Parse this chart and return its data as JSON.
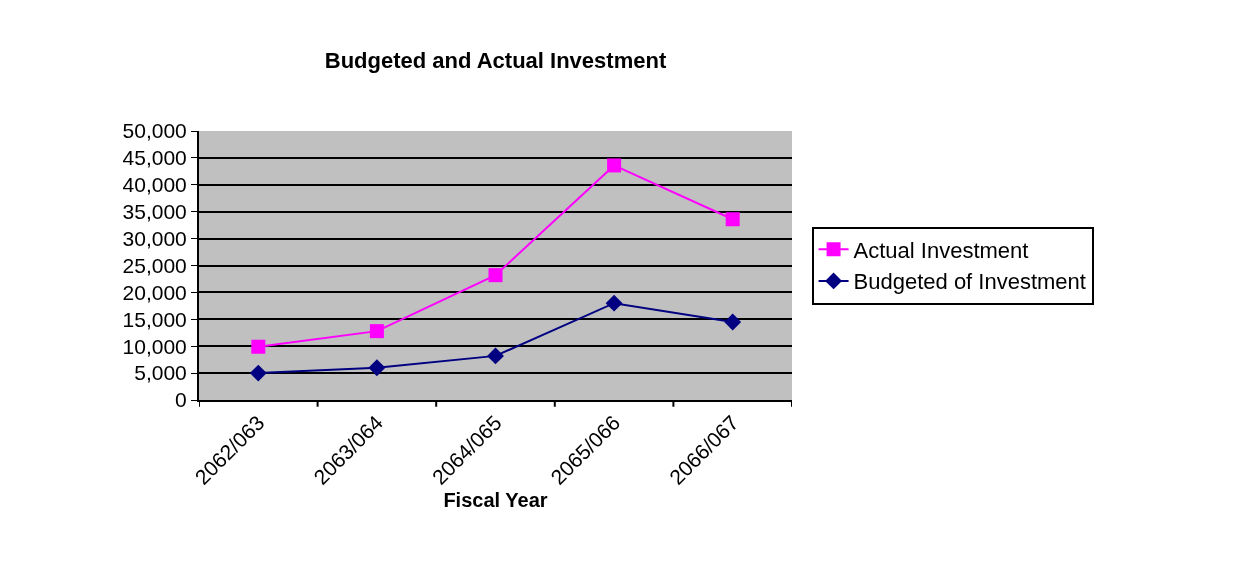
{
  "chart_data": {
    "type": "line",
    "title": "Budgeted and Actual Investment",
    "xlabel": "Fiscal Year",
    "categories": [
      "2062/063",
      "2063/064",
      "2064/065",
      "2065/066",
      "2066/067"
    ],
    "series": [
      {
        "name": "Actual Investment",
        "color": "#ff00ff",
        "marker": "square",
        "values": [
          9900,
          12800,
          23200,
          43600,
          33600
        ]
      },
      {
        "name": "Budgeted of Investment",
        "color": "#000080",
        "marker": "diamond",
        "values": [
          5000,
          6000,
          8200,
          18000,
          14500
        ]
      }
    ],
    "ylim": [
      0,
      50000
    ],
    "yticks": [
      {
        "value": 0,
        "label": "0"
      },
      {
        "value": 5000,
        "label": "5,000"
      },
      {
        "value": 10000,
        "label": "10,000"
      },
      {
        "value": 15000,
        "label": "15,000"
      },
      {
        "value": 20000,
        "label": "20,000"
      },
      {
        "value": 25000,
        "label": "25,000"
      },
      {
        "value": 30000,
        "label": "30,000"
      },
      {
        "value": 35000,
        "label": "35,000"
      },
      {
        "value": 40000,
        "label": "40,000"
      },
      {
        "value": 45000,
        "label": "45,000"
      },
      {
        "value": 50000,
        "label": "50,000"
      }
    ],
    "grid": "y",
    "legend": "right",
    "line_style": "solid"
  }
}
